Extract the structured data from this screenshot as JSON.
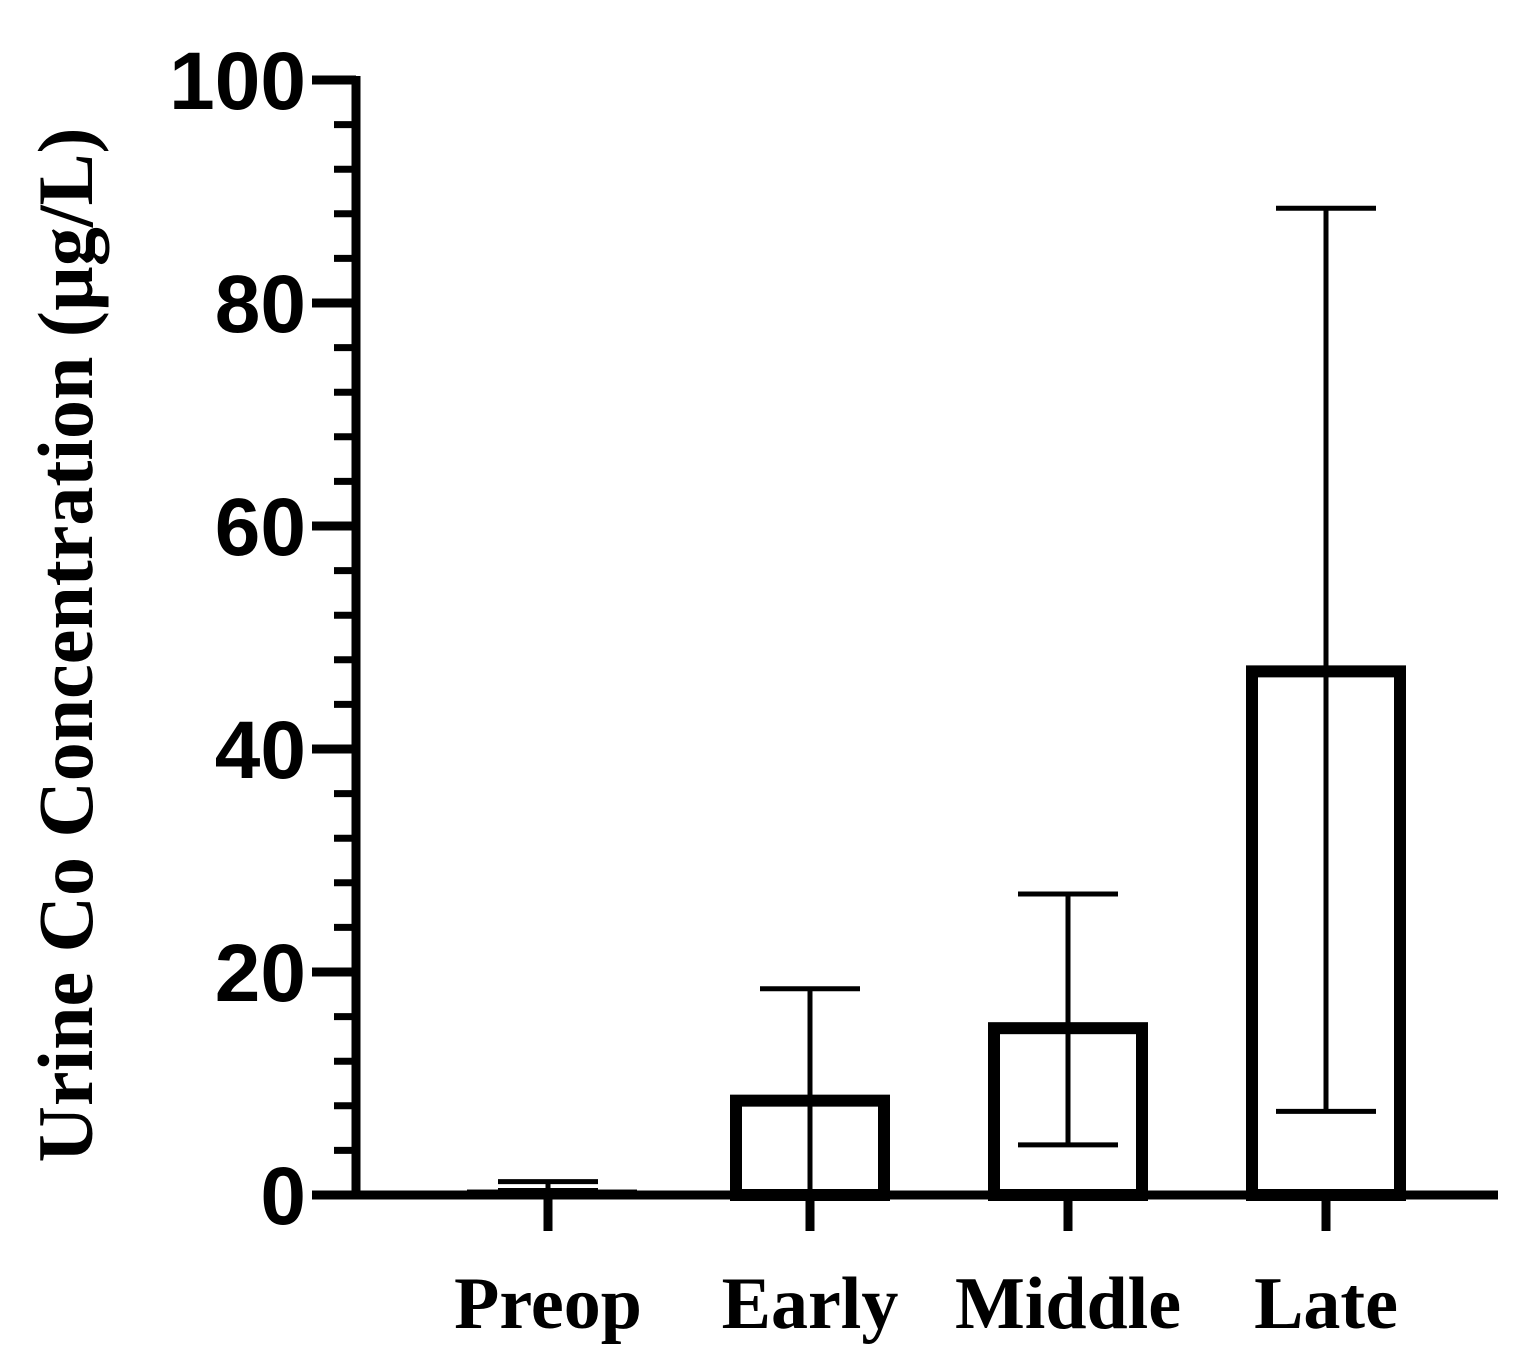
{
  "chart_data": {
    "type": "bar",
    "categories": [
      "Preop",
      "Early",
      "Middle",
      "Late"
    ],
    "values": [
      0.4,
      9.0,
      15.5,
      47.5
    ],
    "error_upper": [
      1.2,
      18.5,
      27.0,
      88.5
    ],
    "error_lower": [
      0.4,
      0.0,
      4.5,
      7.5
    ],
    "ylabel": "Urine Co Concentration (µg/L)",
    "xlabel": "",
    "ylim": [
      0,
      100
    ],
    "yticks": [
      "0",
      "20",
      "40",
      "60",
      "80",
      "100"
    ],
    "ytick_values": [
      0,
      20,
      40,
      60,
      80,
      100
    ],
    "minor_tick_step": 4,
    "grid": false,
    "bar_fill": "#ffffff",
    "stroke_color": "#000000"
  }
}
